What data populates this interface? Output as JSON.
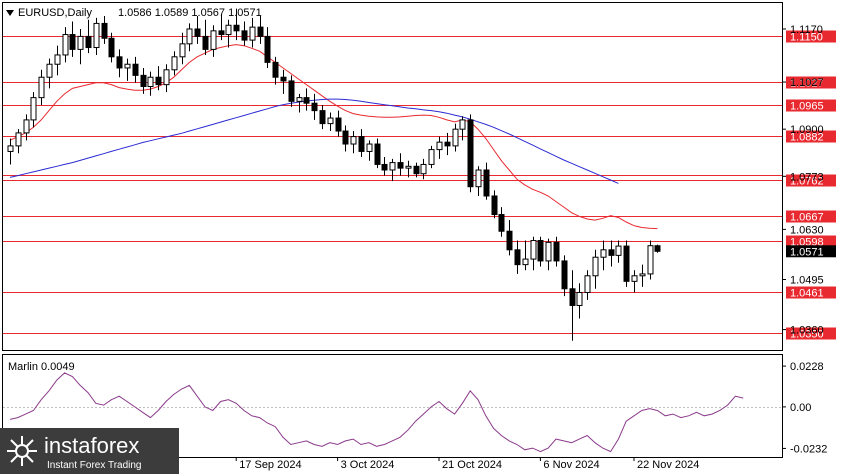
{
  "chart_data": [
    {
      "type": "candlestick",
      "title": "EURUSD,Daily",
      "ohlc_label": "1.0586 1.0589 1.0567 1.0571",
      "ylim": [
        1.0305,
        1.124
      ],
      "y_ticks": [
        "1.1170",
        "1.1027",
        "1.0900",
        "1.0773",
        "1.0630",
        "1.0495",
        "1.0360"
      ],
      "x_ticks": [
        "17 Sep 2024",
        "3 Oct 2024",
        "21 Oct 2024",
        "6 Nov 2024",
        "22 Nov 2024"
      ],
      "current_price": "1.0571",
      "levels": [
        {
          "value": 1.115,
          "label": "1.1150"
        },
        {
          "value": 1.1027,
          "label": "1.1027"
        },
        {
          "value": 1.0965,
          "label": "1.0965"
        },
        {
          "value": 1.0882,
          "label": "1.0882"
        },
        {
          "value": 1.0777,
          "label": ""
        },
        {
          "value": 1.0762,
          "label": "1.0762"
        },
        {
          "value": 1.0667,
          "label": "1.0667"
        },
        {
          "value": 1.0598,
          "label": "1.0598"
        },
        {
          "value": 1.0461,
          "label": "1.0461"
        },
        {
          "value": 1.035,
          "label": "1.0350"
        }
      ],
      "candles": [
        [
          1.084,
          1.0875,
          1.0805,
          1.0855
        ],
        [
          1.0855,
          1.09,
          1.0835,
          1.089
        ],
        [
          1.089,
          1.094,
          1.087,
          1.0925
        ],
        [
          1.0925,
          1.1,
          1.0905,
          1.0985
        ],
        [
          1.0985,
          1.106,
          1.0965,
          1.104
        ],
        [
          1.104,
          1.109,
          1.101,
          1.1075
        ],
        [
          1.1075,
          1.1125,
          1.1045,
          1.11
        ],
        [
          1.11,
          1.1175,
          1.108,
          1.1155
        ],
        [
          1.1155,
          1.119,
          1.1095,
          1.1115
        ],
        [
          1.1115,
          1.117,
          1.1075,
          1.115
        ],
        [
          1.115,
          1.1195,
          1.1105,
          1.112
        ],
        [
          1.112,
          1.12,
          1.11,
          1.1185
        ],
        [
          1.1185,
          1.1205,
          1.113,
          1.1145
        ],
        [
          1.1145,
          1.116,
          1.108,
          1.1095
        ],
        [
          1.1095,
          1.1115,
          1.104,
          1.1065
        ],
        [
          1.1065,
          1.109,
          1.103,
          1.1075
        ],
        [
          1.1075,
          1.1095,
          1.1025,
          1.1045
        ],
        [
          1.1045,
          1.1065,
          1.0995,
          1.1015
        ],
        [
          1.1015,
          1.1055,
          1.099,
          1.104
        ],
        [
          1.104,
          1.107,
          1.1005,
          1.102
        ],
        [
          1.102,
          1.1075,
          1.1,
          1.106
        ],
        [
          1.106,
          1.111,
          1.1045,
          1.1095
        ],
        [
          1.1095,
          1.116,
          1.1075,
          1.113
        ],
        [
          1.113,
          1.1185,
          1.111,
          1.117
        ],
        [
          1.117,
          1.1205,
          1.113,
          1.115
        ],
        [
          1.115,
          1.1195,
          1.11,
          1.1115
        ],
        [
          1.1115,
          1.118,
          1.1095,
          1.1165
        ],
        [
          1.1165,
          1.121,
          1.114,
          1.1155
        ],
        [
          1.1155,
          1.1195,
          1.112,
          1.118
        ],
        [
          1.118,
          1.1225,
          1.114,
          1.1165
        ],
        [
          1.1165,
          1.119,
          1.1125,
          1.114
        ],
        [
          1.114,
          1.12,
          1.112,
          1.1175
        ],
        [
          1.1175,
          1.1205,
          1.113,
          1.115
        ],
        [
          1.115,
          1.1175,
          1.1065,
          1.108
        ],
        [
          1.108,
          1.1095,
          1.102,
          1.104
        ],
        [
          1.104,
          1.106,
          1.0995,
          1.103
        ],
        [
          1.103,
          1.1045,
          1.096,
          1.0975
        ],
        [
          1.0975,
          1.0995,
          1.0945,
          1.0985
        ],
        [
          1.0985,
          1.101,
          1.095,
          1.097
        ],
        [
          1.097,
          1.0995,
          1.0925,
          1.095
        ],
        [
          1.095,
          1.0965,
          1.09,
          1.0915
        ],
        [
          1.0915,
          1.0945,
          1.0895,
          1.093
        ],
        [
          1.093,
          1.095,
          1.088,
          1.0895
        ],
        [
          1.0895,
          1.091,
          1.084,
          1.086
        ],
        [
          1.086,
          1.0895,
          1.0835,
          1.088
        ],
        [
          1.088,
          1.09,
          1.0825,
          1.084
        ],
        [
          1.084,
          1.087,
          1.0815,
          1.086
        ],
        [
          1.086,
          1.0875,
          1.0795,
          1.0805
        ],
        [
          1.0805,
          1.0825,
          1.0775,
          1.079
        ],
        [
          1.079,
          1.082,
          1.076,
          1.081
        ],
        [
          1.081,
          1.0835,
          1.0775,
          1.0795
        ],
        [
          1.0795,
          1.0815,
          1.077,
          1.08
        ],
        [
          1.08,
          1.081,
          1.077,
          1.078
        ],
        [
          1.078,
          1.082,
          1.0765,
          1.0805
        ],
        [
          1.0805,
          1.0855,
          1.0795,
          1.0845
        ],
        [
          1.0845,
          1.088,
          1.082,
          1.0865
        ],
        [
          1.0865,
          1.089,
          1.083,
          1.0855
        ],
        [
          1.0855,
          1.0915,
          1.084,
          1.09
        ],
        [
          1.09,
          1.0935,
          1.087,
          1.0925
        ],
        [
          1.0925,
          1.094,
          1.073,
          1.0745
        ],
        [
          1.0745,
          1.08,
          1.072,
          1.079
        ],
        [
          1.079,
          1.081,
          1.071,
          1.072
        ],
        [
          1.072,
          1.0735,
          1.066,
          1.067
        ],
        [
          1.067,
          1.069,
          1.061,
          1.0625
        ],
        [
          1.0625,
          1.0655,
          1.056,
          1.0575
        ],
        [
          1.0575,
          1.06,
          1.051,
          1.0535
        ],
        [
          1.0535,
          1.06,
          1.052,
          1.055
        ],
        [
          1.055,
          1.061,
          1.052,
          1.06
        ],
        [
          1.06,
          1.061,
          1.053,
          1.0545
        ],
        [
          1.0545,
          1.0605,
          1.052,
          1.0595
        ],
        [
          1.0595,
          1.061,
          1.053,
          1.0545
        ],
        [
          1.0545,
          1.056,
          1.045,
          1.047
        ],
        [
          1.047,
          1.052,
          1.033,
          1.0425
        ],
        [
          1.0425,
          1.0485,
          1.039,
          1.046
        ],
        [
          1.046,
          1.052,
          1.044,
          1.0505
        ],
        [
          1.0505,
          1.0575,
          1.047,
          1.0555
        ],
        [
          1.0555,
          1.06,
          1.052,
          1.0575
        ],
        [
          1.0575,
          1.06,
          1.053,
          1.056
        ],
        [
          1.056,
          1.06,
          1.054,
          1.0585
        ],
        [
          1.0585,
          1.06,
          1.0475,
          1.049
        ],
        [
          1.049,
          1.052,
          1.046,
          1.0505
        ],
        [
          1.0505,
          1.0535,
          1.0475,
          1.051
        ],
        [
          1.051,
          1.06,
          1.0495,
          1.0586
        ],
        [
          1.0586,
          1.0589,
          1.0567,
          1.0571
        ]
      ],
      "series": [
        {
          "name": "",
          "color": "#e8292f",
          "values": [
            1.087,
            1.088,
            1.089,
            1.0905,
            1.0925,
            1.095,
            1.0975,
            1.0995,
            1.101,
            1.1015,
            1.102,
            1.1025,
            1.1025,
            1.102,
            1.1012,
            1.1008,
            1.1005,
            1.1005,
            1.1008,
            1.1015,
            1.1025,
            1.104,
            1.106,
            1.108,
            1.1095,
            1.1105,
            1.1115,
            1.112,
            1.1125,
            1.1128,
            1.1125,
            1.1118,
            1.111,
            1.1095,
            1.108,
            1.1065,
            1.105,
            1.1035,
            1.102,
            1.1005,
            1.099,
            1.0975,
            1.0962,
            1.095,
            1.0942,
            1.0938,
            1.0935,
            1.0933,
            1.0932,
            1.0932,
            1.0933,
            1.0935,
            1.0937,
            1.0938,
            1.0937,
            1.0932,
            1.0925,
            1.092,
            1.0925,
            1.092,
            1.09,
            1.0875,
            1.0845,
            1.0815,
            1.079,
            1.0765,
            1.075,
            1.0738,
            1.073,
            1.072,
            1.0705,
            1.069,
            1.0675,
            1.0665,
            1.0658,
            1.0655,
            1.066,
            1.0667,
            1.0662,
            1.065,
            1.064,
            1.0635,
            1.0633,
            1.0632
          ]
        },
        {
          "name": "",
          "color": "#2b2bd4",
          "values": [
            1.077,
            1.0775,
            1.078,
            1.0785,
            1.079,
            1.0795,
            1.08,
            1.0805,
            1.081,
            1.0816,
            1.0822,
            1.0828,
            1.0834,
            1.084,
            1.0846,
            1.0852,
            1.0858,
            1.0864,
            1.0869,
            1.0874,
            1.0879,
            1.0884,
            1.0889,
            1.0895,
            1.0901,
            1.0907,
            1.0913,
            1.0919,
            1.0925,
            1.0931,
            1.0937,
            1.0943,
            1.0949,
            1.0955,
            1.0961,
            1.0966,
            1.097,
            1.0973,
            1.0976,
            1.0978,
            1.098,
            1.0981,
            1.0981,
            1.098,
            1.0978,
            1.0975,
            1.0972,
            1.0969,
            1.0966,
            1.0963,
            1.096,
            1.0957,
            1.0955,
            1.0952,
            1.095,
            1.0947,
            1.0943,
            1.0938,
            1.0933,
            1.0927,
            1.092,
            1.0913,
            1.0905,
            1.0896,
            1.0887,
            1.0877,
            1.0867,
            1.0857,
            1.0847,
            1.0837,
            1.0827,
            1.0817,
            1.0808,
            1.0799,
            1.079,
            1.0781,
            1.0772,
            1.0763,
            1.0754
          ]
        }
      ]
    },
    {
      "type": "line",
      "title": "Marlin 0.0049",
      "ylim": [
        -0.028,
        0.029
      ],
      "y_ticks": [
        "0.0228",
        "0.00",
        "-0.0232"
      ],
      "zero_line": 0.0,
      "series": [
        {
          "name": "",
          "color": "#8b3a8b",
          "values": [
            -0.007,
            -0.006,
            -0.004,
            -0.002,
            0.004,
            0.009,
            0.015,
            0.019,
            0.017,
            0.012,
            0.008,
            0.002,
            0.001,
            0.004,
            0.006,
            0.003,
            0.0,
            -0.003,
            -0.006,
            -0.002,
            0.003,
            0.007,
            0.01,
            0.012,
            0.006,
            0.0,
            -0.002,
            0.003,
            0.004,
            0.002,
            -0.002,
            -0.005,
            -0.006,
            -0.009,
            -0.011,
            -0.017,
            -0.021,
            -0.02,
            -0.019,
            -0.021,
            -0.022,
            -0.02,
            -0.021,
            -0.019,
            -0.018,
            -0.021,
            -0.02,
            -0.022,
            -0.021,
            -0.019,
            -0.017,
            -0.013,
            -0.008,
            -0.004,
            0.0,
            0.003,
            -0.001,
            -0.004,
            0.002,
            0.009,
            0.004,
            -0.005,
            -0.012,
            -0.016,
            -0.019,
            -0.021,
            -0.024,
            -0.023,
            -0.025,
            -0.023,
            -0.018,
            -0.019,
            -0.02,
            -0.018,
            -0.016,
            -0.02,
            -0.023,
            -0.025,
            -0.018,
            -0.008,
            -0.005,
            -0.002,
            -0.001,
            -0.002,
            -0.005,
            -0.004,
            -0.006,
            -0.005,
            -0.003,
            -0.005,
            -0.004,
            -0.002,
            0.001,
            0.006,
            0.0049
          ]
        }
      ]
    }
  ],
  "logo": {
    "brand": "instaforex",
    "tagline": "Instant Forex Trading"
  },
  "colors": {
    "candle_up": "#ffffff",
    "candle_down": "#000000",
    "level": "#e8292f",
    "price_box": "#000000"
  }
}
